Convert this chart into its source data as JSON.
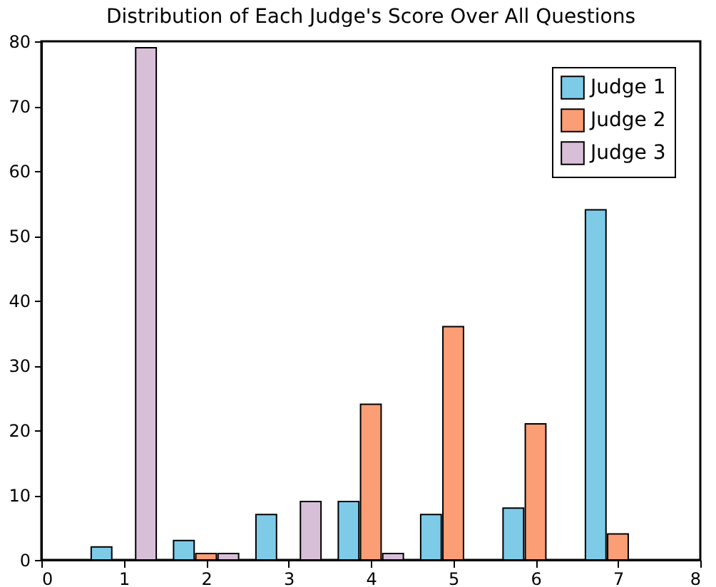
{
  "chart_data": {
    "type": "bar",
    "title": "Distribution of Each Judge's Score Over All Questions",
    "series": [
      {
        "name": "Judge 1",
        "color": "#7ecbe8",
        "x": [
          0.73,
          1.73,
          2.73,
          3.73,
          4.73,
          5.73,
          6.73
        ],
        "values": [
          2,
          3,
          7,
          9,
          7,
          8,
          54
        ]
      },
      {
        "name": "Judge 2",
        "color": "#fb9e75",
        "x": [
          2.0,
          4.0,
          5.0,
          6.0,
          7.0
        ],
        "values": [
          1,
          24,
          36,
          21,
          4
        ]
      },
      {
        "name": "Judge 3",
        "color": "#d8bfd8",
        "x": [
          1.27,
          2.27,
          3.27,
          4.27
        ],
        "values": [
          79,
          1,
          9,
          1
        ]
      }
    ],
    "xlim": [
      0,
      8
    ],
    "xticks": [
      0,
      1,
      2,
      3,
      4,
      5,
      6,
      7,
      8
    ],
    "ylim": [
      0,
      80
    ],
    "yticks": [
      0,
      10,
      20,
      30,
      40,
      50,
      60,
      70,
      80
    ],
    "grid": false,
    "legend": "top right"
  }
}
